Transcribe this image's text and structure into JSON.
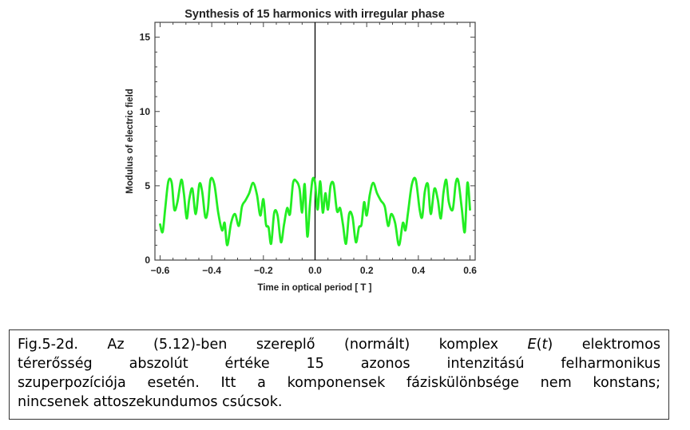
{
  "chart_data": {
    "type": "line",
    "title": "Synthesis of 15 harmonics with irregular phase",
    "xlabel": "Time in optical period [ T ]",
    "ylabel": "Modulus of electric field",
    "xlim": [
      -0.62,
      0.62
    ],
    "ylim": [
      0,
      16
    ],
    "x_ticks": [
      -0.6,
      -0.4,
      -0.2,
      0.0,
      0.2,
      0.4,
      0.6
    ],
    "x_tick_labels": [
      "−0.6",
      "−0.4",
      "−0.2",
      "0.0",
      "0.2",
      "0.4",
      "0.6"
    ],
    "y_ticks": [
      0,
      5,
      10,
      15
    ],
    "y_tick_labels": [
      "0",
      "5",
      "10",
      "15"
    ],
    "vertical_marker_x": 0.0,
    "series": [
      {
        "name": "modulus",
        "color": "#22ee22",
        "x": [
          -0.6,
          -0.59,
          -0.58,
          -0.568,
          -0.555,
          -0.545,
          -0.533,
          -0.518,
          -0.508,
          -0.497,
          -0.487,
          -0.475,
          -0.462,
          -0.448,
          -0.437,
          -0.425,
          -0.415,
          -0.405,
          -0.39,
          -0.375,
          -0.36,
          -0.35,
          -0.34,
          -0.325,
          -0.31,
          -0.295,
          -0.283,
          -0.27,
          -0.255,
          -0.24,
          -0.225,
          -0.212,
          -0.2,
          -0.19,
          -0.18,
          -0.17,
          -0.158,
          -0.145,
          -0.132,
          -0.12,
          -0.108,
          -0.097,
          -0.085,
          -0.072,
          -0.06,
          -0.05,
          -0.04,
          -0.03,
          -0.02,
          -0.01,
          0.0,
          0.01,
          0.02,
          0.03,
          0.04,
          0.05,
          0.06,
          0.072,
          0.085,
          0.097,
          0.108,
          0.12,
          0.132,
          0.145,
          0.158,
          0.17,
          0.18,
          0.19,
          0.2,
          0.212,
          0.225,
          0.24,
          0.255,
          0.27,
          0.283,
          0.295,
          0.31,
          0.325,
          0.34,
          0.35,
          0.36,
          0.375,
          0.39,
          0.405,
          0.415,
          0.425,
          0.437,
          0.448,
          0.462,
          0.475,
          0.487,
          0.497,
          0.508,
          0.518,
          0.533,
          0.545,
          0.555,
          0.568,
          0.58,
          0.59,
          0.6
        ],
        "values": [
          2.4,
          1.9,
          3.5,
          5.3,
          5.2,
          3.4,
          3.9,
          5.4,
          4.5,
          2.8,
          4.1,
          4.8,
          3.1,
          5.1,
          4.6,
          2.9,
          3.4,
          5.4,
          5.1,
          3.2,
          2.0,
          2.5,
          1.0,
          2.5,
          3.1,
          2.3,
          3.6,
          4.0,
          4.5,
          5.2,
          4.4,
          3.0,
          4.1,
          2.4,
          2.2,
          1.1,
          3.2,
          3.0,
          1.2,
          2.4,
          3.5,
          3.1,
          5.2,
          5.3,
          4.8,
          3.2,
          5.1,
          1.6,
          3.7,
          5.4,
          5.2,
          3.4,
          5.3,
          3.2,
          4.5,
          3.4,
          5.0,
          5.1,
          3.3,
          3.5,
          2.4,
          1.1,
          3.1,
          2.9,
          1.2,
          2.2,
          2.4,
          3.9,
          3.0,
          4.4,
          5.2,
          4.5,
          4.0,
          3.6,
          2.3,
          3.1,
          2.5,
          1.0,
          2.5,
          2.0,
          3.2,
          5.1,
          5.4,
          3.4,
          2.9,
          4.6,
          5.1,
          3.1,
          4.8,
          4.1,
          2.8,
          4.5,
          5.4,
          3.9,
          3.4,
          5.2,
          5.3,
          3.5,
          1.9,
          5.2,
          3.4
        ]
      }
    ]
  },
  "caption": {
    "line1_pre": "Fig.5-2d. Az (5.12)-ben szereplő (normált) komplex ",
    "line1_e": "E",
    "line1_open": "(",
    "line1_t": "t",
    "line1_close": ")",
    "line1_post": " elektromos",
    "line2": "térerősség abszolút értéke 15 azonos intenzitású felharmonikus",
    "line3": "szuperpozíciója esetén. Itt a komponensek  fáziskülönbsége nem konstans;",
    "line4": "nincsenek attoszekundumos  csúcsok."
  }
}
